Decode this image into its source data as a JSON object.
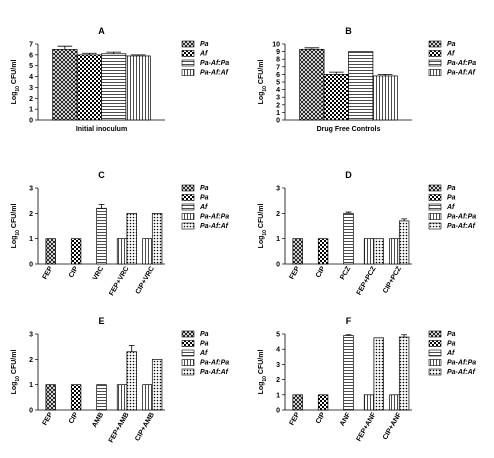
{
  "chart_data": [
    {
      "type": "bar",
      "title": "A",
      "xlabel": "Initial inoculum",
      "ylabel": [
        "Log",
        "10",
        " CFU/ml"
      ],
      "categories": [
        null
      ],
      "ylim": [
        0,
        7
      ],
      "yticks": [
        0,
        1,
        2,
        3,
        4,
        5,
        6,
        7
      ],
      "series": [
        {
          "name": "Pa",
          "pattern": "cross",
          "values": [
            6.5
          ],
          "errors": [
            0.3
          ]
        },
        {
          "name": "Af",
          "pattern": "checker",
          "values": [
            6.0
          ],
          "errors": [
            0.15
          ]
        },
        {
          "name": "Pa-Af:Pa",
          "pattern": "hlines",
          "values": [
            6.1
          ],
          "errors": [
            0.15
          ]
        },
        {
          "name": "Pa-Af:Af",
          "pattern": "vlines",
          "values": [
            5.9
          ],
          "errors": [
            0.1
          ]
        }
      ]
    },
    {
      "type": "bar",
      "title": "B",
      "xlabel": "Drug Free Controls",
      "ylabel": [
        "Log",
        "10",
        " CFU/ml"
      ],
      "categories": [
        null
      ],
      "ylim": [
        0,
        10
      ],
      "yticks": [
        0,
        1,
        2,
        3,
        4,
        5,
        6,
        7,
        8,
        9,
        10
      ],
      "series": [
        {
          "name": "Pa",
          "pattern": "cross",
          "values": [
            9.3
          ],
          "errors": [
            0.2
          ]
        },
        {
          "name": "Af",
          "pattern": "checker",
          "values": [
            6.0
          ],
          "errors": [
            0.3
          ]
        },
        {
          "name": "Pa-Af:Pa",
          "pattern": "hlines",
          "values": [
            9.0
          ],
          "errors": [
            null
          ]
        },
        {
          "name": "Pa-Af:Af",
          "pattern": "vlines",
          "values": [
            5.8
          ],
          "errors": [
            0.2
          ]
        }
      ]
    },
    {
      "type": "bar",
      "title": "C",
      "ylabel": [
        "Log",
        "10",
        " CFU/ml"
      ],
      "categories": [
        "FEP",
        "CIP",
        "VRC",
        "FEP+VRC",
        "CIP+VRC"
      ],
      "ylim": [
        0,
        3
      ],
      "yticks": [
        0,
        1,
        2,
        3
      ],
      "series": [
        {
          "name": "Pa",
          "pattern": "cross",
          "values": [
            1,
            null,
            null,
            null,
            null
          ],
          "errors": [
            null,
            null,
            null,
            null,
            null
          ]
        },
        {
          "name": "Pa",
          "pattern": "checker",
          "values": [
            null,
            1,
            null,
            null,
            null
          ],
          "errors": [
            null,
            null,
            null,
            null,
            null
          ]
        },
        {
          "name": "Af",
          "pattern": "hlines",
          "values": [
            null,
            null,
            2.2,
            null,
            null
          ],
          "errors": [
            null,
            null,
            0.15,
            null,
            null
          ]
        },
        {
          "name": "Pa-Af:Pa",
          "pattern": "vlines",
          "values": [
            null,
            null,
            null,
            1,
            1
          ],
          "errors": [
            null,
            null,
            null,
            null,
            null
          ]
        },
        {
          "name": "Pa-Af:Af",
          "pattern": "dots",
          "values": [
            null,
            null,
            null,
            2,
            2
          ],
          "errors": [
            null,
            null,
            null,
            null,
            null
          ]
        }
      ]
    },
    {
      "type": "bar",
      "title": "D",
      "ylabel": [
        "Log",
        "10",
        " CFU/ml"
      ],
      "categories": [
        "FEP",
        "CIP",
        "PCZ",
        "FEP+PCZ",
        "CIP+PCZ"
      ],
      "ylim": [
        0,
        3
      ],
      "yticks": [
        0,
        1,
        2,
        3
      ],
      "series": [
        {
          "name": "Pa",
          "pattern": "cross",
          "values": [
            1,
            null,
            null,
            null,
            null
          ],
          "errors": [
            null,
            null,
            null,
            null,
            null
          ]
        },
        {
          "name": "Pa",
          "pattern": "checker",
          "values": [
            null,
            1,
            null,
            null,
            null
          ],
          "errors": [
            null,
            null,
            null,
            null,
            null
          ]
        },
        {
          "name": "Af",
          "pattern": "hlines",
          "values": [
            null,
            null,
            2.0,
            null,
            null
          ],
          "errors": [
            null,
            null,
            0.05,
            null,
            null
          ]
        },
        {
          "name": "Pa-Af:Pa",
          "pattern": "vlines",
          "values": [
            null,
            null,
            null,
            1,
            1
          ],
          "errors": [
            null,
            null,
            null,
            null,
            null
          ]
        },
        {
          "name": "Pa-Af:Af",
          "pattern": "dots",
          "values": [
            null,
            null,
            null,
            1,
            1.7
          ],
          "errors": [
            null,
            null,
            null,
            null,
            0.08
          ]
        }
      ]
    },
    {
      "type": "bar",
      "title": "E",
      "ylabel": [
        "Log",
        "10",
        " CFU/ml"
      ],
      "categories": [
        "FEP",
        "CIP",
        "AMB",
        "FEP+AMB",
        "CIP+AMB"
      ],
      "ylim": [
        0,
        3
      ],
      "yticks": [
        0,
        1,
        2,
        3
      ],
      "series": [
        {
          "name": "Pa",
          "pattern": "cross",
          "values": [
            1,
            null,
            null,
            null,
            null
          ],
          "errors": [
            null,
            null,
            null,
            null,
            null
          ]
        },
        {
          "name": "Pa",
          "pattern": "checker",
          "values": [
            null,
            1,
            null,
            null,
            null
          ],
          "errors": [
            null,
            null,
            null,
            null,
            null
          ]
        },
        {
          "name": "Af",
          "pattern": "hlines",
          "values": [
            null,
            null,
            1,
            null,
            null
          ],
          "errors": [
            null,
            null,
            null,
            null,
            null
          ]
        },
        {
          "name": "Pa-Af:Pa",
          "pattern": "vlines",
          "values": [
            null,
            null,
            null,
            1,
            1
          ],
          "errors": [
            null,
            null,
            null,
            null,
            null
          ]
        },
        {
          "name": "Pa-Af:Af",
          "pattern": "dots",
          "values": [
            null,
            null,
            null,
            2.3,
            2.0
          ],
          "errors": [
            null,
            null,
            null,
            0.25,
            null
          ]
        }
      ]
    },
    {
      "type": "bar",
      "title": "F",
      "ylabel": [
        "Log",
        "10",
        " CFU/ml"
      ],
      "categories": [
        "FEP",
        "CIP",
        "ANF",
        "FEP+ANF",
        "CIP+ANF"
      ],
      "ylim": [
        0,
        5
      ],
      "yticks": [
        0,
        1,
        2,
        3,
        4,
        5
      ],
      "series": [
        {
          "name": "Pa",
          "pattern": "cross",
          "values": [
            1,
            null,
            null,
            null,
            null
          ],
          "errors": [
            null,
            null,
            null,
            null,
            null
          ]
        },
        {
          "name": "Pa",
          "pattern": "checker",
          "values": [
            null,
            1,
            null,
            null,
            null
          ],
          "errors": [
            null,
            null,
            null,
            null,
            null
          ]
        },
        {
          "name": "Af",
          "pattern": "hlines",
          "values": [
            null,
            null,
            4.9,
            null,
            null
          ],
          "errors": [
            null,
            null,
            0.05,
            null,
            null
          ]
        },
        {
          "name": "Pa-Af:Pa",
          "pattern": "vlines",
          "values": [
            null,
            null,
            null,
            1,
            1
          ],
          "errors": [
            null,
            null,
            null,
            null,
            null
          ]
        },
        {
          "name": "Pa-Af:Af",
          "pattern": "dots",
          "values": [
            null,
            null,
            null,
            4.75,
            4.8
          ],
          "errors": [
            null,
            null,
            null,
            null,
            0.15
          ]
        }
      ]
    }
  ]
}
